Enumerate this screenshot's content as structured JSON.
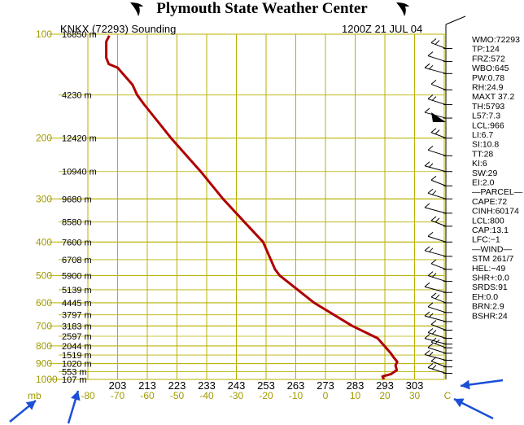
{
  "header": {
    "title": "Plymouth State Weather Center",
    "station_title": "KNKX (72293) Sounding",
    "date": "1200Z 21 JUL 04"
  },
  "colors": {
    "grid": "#b8b000",
    "pressure_labels": "#a09a00",
    "trace": "#b00000",
    "text": "#000000",
    "arrows": "#1a4fd6"
  },
  "chart_data": {
    "type": "line",
    "title": "KNKX (72293) Sounding",
    "ylabel": "mb",
    "xlabel": "C",
    "y_scale": "log",
    "y_axis": {
      "label": "mb",
      "ticks": [
        "100",
        "200",
        "300",
        "400",
        "500",
        "600",
        "700",
        "800",
        "900",
        "1000"
      ],
      "range": [
        100,
        1000
      ]
    },
    "x_axis": {
      "label": "C",
      "ticks": [
        "-80",
        "-70",
        "-60",
        "-50",
        "-40",
        "-30",
        "-20",
        "-10",
        "0",
        "10",
        "20",
        "30"
      ],
      "range": [
        -80,
        40
      ]
    },
    "kelvin_ticks": [
      "203",
      "213",
      "223",
      "233",
      "243",
      "253",
      "263",
      "273",
      "283",
      "293",
      "303"
    ],
    "height_labels": [
      "16850 m",
      "4230 m",
      "12420 m",
      "10940 m",
      "9680 m",
      "8580 m",
      "7600 m",
      "6708 m",
      "5900 m",
      "5139 m",
      "4445 m",
      "3797 m",
      "3183 m",
      "2597 m",
      "2044 m",
      "1519 m",
      "1020 m",
      "553 m",
      "107 m"
    ],
    "height_pressures": [
      100,
      150,
      200,
      250,
      300,
      350,
      400,
      450,
      500,
      550,
      600,
      650,
      700,
      750,
      800,
      850,
      900,
      950,
      1000
    ],
    "grid": true,
    "series": [
      {
        "points": [
          {
            "p": 1000,
            "t": 19.6
          },
          {
            "p": 980,
            "t": 19.2
          },
          {
            "p": 966,
            "t": 22.0
          },
          {
            "p": 940,
            "t": 24.0
          },
          {
            "p": 910,
            "t": 23.6
          },
          {
            "p": 890,
            "t": 24.2
          },
          {
            "p": 860,
            "t": 22.8
          },
          {
            "p": 840,
            "t": 22.0
          },
          {
            "p": 760,
            "t": 17.6
          },
          {
            "p": 700,
            "t": 9.0
          },
          {
            "p": 600,
            "t": -3.8
          },
          {
            "p": 500,
            "t": -15.4
          },
          {
            "p": 480,
            "t": -17.0
          },
          {
            "p": 400,
            "t": -21.0
          },
          {
            "p": 350,
            "t": -27.3
          },
          {
            "p": 300,
            "t": -34.5
          },
          {
            "p": 250,
            "t": -42.0
          },
          {
            "p": 200,
            "t": -52.0
          },
          {
            "p": 160,
            "t": -61.0
          },
          {
            "p": 150,
            "t": -63.4
          },
          {
            "p": 140,
            "t": -65.0
          },
          {
            "p": 125,
            "t": -70.0
          },
          {
            "p": 122,
            "t": -73.0
          },
          {
            "p": 117,
            "t": -73.8
          },
          {
            "p": 105,
            "t": -73.8
          },
          {
            "p": 101,
            "t": -72.8
          }
        ]
      }
    ]
  },
  "indices": [
    "WMO:72293",
    "TP:124",
    "FRZ:572",
    "WBO:645",
    "PW:0.78",
    "RH:24.9",
    "MAXT 37.2",
    "TH:5793",
    "L57:7.3",
    "LCL:966",
    "LI:6.7",
    "SI:10.8",
    "TT:28",
    "KI:6",
    "SW:29",
    "EI:2.0",
    "—PARCEL—",
    "CAPE:72",
    "CINH:60174",
    "LCL:800",
    "CAP:13.1",
    "LFC:−1",
    "—WIND—",
    "STM 261/7",
    "HEL:−49",
    "SHR+:0.0",
    "SRDS:91",
    "EH:0.0",
    "BRN:2.9",
    "BSHR:24"
  ],
  "wind_barbs": [
    "barb-icon"
  ],
  "annotation_arrows": [
    "arrow-icon",
    "arrow-icon",
    "arrow-icon",
    "arrow-icon"
  ]
}
